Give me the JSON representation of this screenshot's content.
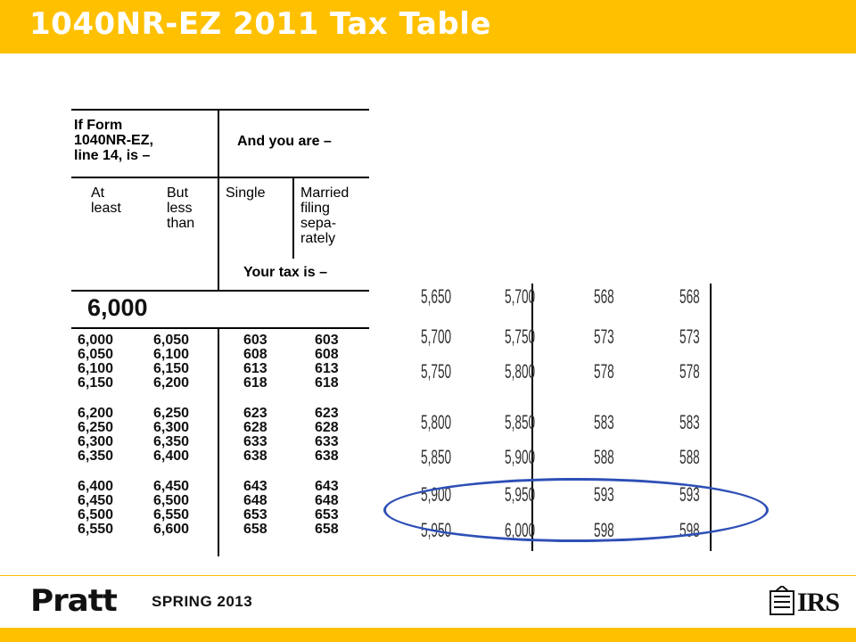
{
  "slide": {
    "title": "1040NR-EZ 2011 Tax Table",
    "footer_season": "SPRING 2013",
    "brand_left": "Pratt",
    "brand_right": "IRS",
    "colors": {
      "accent": "#ffc000",
      "title_text": "#ffffff",
      "highlight_ellipse": "#2e4fb6"
    }
  },
  "left_table": {
    "header_if": "If Form\n1040NR-EZ,\nline 14, is –",
    "header_and": "And you are –",
    "col_at_least": "At\nleast",
    "col_but_less": "But\nless\nthan",
    "col_single": "Single",
    "col_married": "Married\nfiling\nsepa-\nrately",
    "your_tax": "Your tax is –",
    "band": "6,000",
    "rows": [
      [
        "6,000",
        "6,050",
        "603",
        "603"
      ],
      [
        "6,050",
        "6,100",
        "608",
        "608"
      ],
      [
        "6,100",
        "6,150",
        "613",
        "613"
      ],
      [
        "6,150",
        "6,200",
        "618",
        "618"
      ],
      [
        "6,200",
        "6,250",
        "623",
        "623"
      ],
      [
        "6,250",
        "6,300",
        "628",
        "628"
      ],
      [
        "6,300",
        "6,350",
        "633",
        "633"
      ],
      [
        "6,350",
        "6,400",
        "638",
        "638"
      ],
      [
        "6,400",
        "6,450",
        "643",
        "643"
      ],
      [
        "6,450",
        "6,500",
        "648",
        "648"
      ],
      [
        "6,500",
        "6,550",
        "653",
        "653"
      ],
      [
        "6,550",
        "6,600",
        "658",
        "658"
      ]
    ]
  },
  "right_table": {
    "rows": [
      [
        "5,650",
        "5,700",
        "568",
        "568"
      ],
      [
        "5,700",
        "5,750",
        "573",
        "573"
      ],
      [
        "5,750",
        "5,800",
        "578",
        "578"
      ],
      [
        "5,800",
        "5,850",
        "583",
        "583"
      ],
      [
        "5,850",
        "5,900",
        "588",
        "588"
      ],
      [
        "5,900",
        "5,950",
        "593",
        "593"
      ],
      [
        "5,950",
        "6,000",
        "598",
        "598"
      ]
    ]
  }
}
